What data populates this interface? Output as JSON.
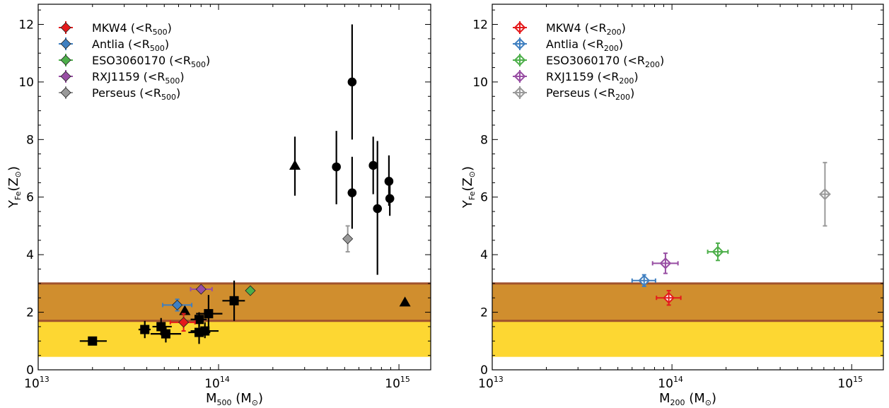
{
  "chart_data": [
    {
      "type": "scatter",
      "xscale": "log",
      "xlim": [
        10000000000000.0,
        1500000000000000.0
      ],
      "ylim": [
        0,
        12.7
      ],
      "xlabel": {
        "main": "M",
        "sub": "500",
        "unit": " (M",
        "sun": "⊙",
        "close": ")"
      },
      "ylabel": {
        "main": "Y",
        "sub": "Fe",
        "unit": "(Z",
        "sun": "⊙",
        "close": ")"
      },
      "xticks": [
        {
          "value": 10000000000000.0,
          "base": "10",
          "exp": "13"
        },
        {
          "value": 100000000000000.0,
          "base": "10",
          "exp": "14"
        },
        {
          "value": 1000000000000000.0,
          "base": "10",
          "exp": "15"
        }
      ],
      "yticks": [
        "0",
        "2",
        "4",
        "6",
        "8",
        "10",
        "12"
      ],
      "grid": false,
      "legend_position": "top-left",
      "bands": [
        {
          "ymin": 0.45,
          "ymax": 1.75,
          "color": "#fdd732"
        },
        {
          "ymin": 1.7,
          "ymax": 3.0,
          "color": "#d08e2e",
          "edge": "#a0522d"
        }
      ],
      "series": [
        {
          "name": "MKW4",
          "suffix": " (<R",
          "radius": "500",
          "close": ")",
          "color": "#e41a1c",
          "marker": "diamond",
          "filled": true,
          "points": [
            {
              "x": 64000000000000.0,
              "y": 1.65,
              "xlo": 54000000000000.0,
              "xhi": 74000000000000.0,
              "ylo": 1.35,
              "yhi": 1.95
            }
          ]
        },
        {
          "name": "Antlia",
          "suffix": " (<R",
          "radius": "500",
          "close": ")",
          "color": "#3f7fc0",
          "marker": "diamond",
          "filled": true,
          "points": [
            {
              "x": 59000000000000.0,
              "y": 2.25,
              "xlo": 49000000000000.0,
              "xhi": 71000000000000.0,
              "ylo": 2.05,
              "yhi": 2.45
            }
          ]
        },
        {
          "name": "ESO3060170",
          "suffix": " (<R",
          "radius": "500",
          "close": ")",
          "color": "#4daf4a",
          "marker": "diamond",
          "filled": true,
          "points": [
            {
              "x": 150000000000000.0,
              "y": 2.75
            }
          ]
        },
        {
          "name": "RXJ1159",
          "suffix": " (<R",
          "radius": "500",
          "close": ")",
          "color": "#984ea3",
          "marker": "diamond",
          "filled": true,
          "points": [
            {
              "x": 80000000000000.0,
              "y": 2.8,
              "xlo": 70000000000000.0,
              "xhi": 92000000000000.0
            }
          ]
        },
        {
          "name": "Perseus",
          "suffix": " (<R",
          "radius": "500",
          "close": ")",
          "color": "#999999",
          "marker": "diamond",
          "filled": true,
          "points": [
            {
              "x": 520000000000000.0,
              "y": 4.55,
              "ylo": 4.1,
              "yhi": 5.0
            }
          ]
        },
        {
          "color": "#000000",
          "marker": "square",
          "filled": true,
          "points": [
            {
              "x": 20000000000000.0,
              "y": 1.0,
              "xlo": 17000000000000.0,
              "xhi": 24000000000000.0,
              "ylo": 0.85,
              "yhi": 1.15
            },
            {
              "x": 39000000000000.0,
              "y": 1.4,
              "xlo": 36000000000000.0,
              "xhi": 42000000000000.0,
              "ylo": 1.1,
              "yhi": 1.7
            },
            {
              "x": 48000000000000.0,
              "y": 1.5,
              "xlo": 43000000000000.0,
              "xhi": 55000000000000.0,
              "ylo": 1.2,
              "yhi": 1.8
            },
            {
              "x": 51000000000000.0,
              "y": 1.25,
              "xlo": 42000000000000.0,
              "xhi": 62000000000000.0,
              "ylo": 0.95,
              "yhi": 1.5
            },
            {
              "x": 78000000000000.0,
              "y": 1.75,
              "xlo": 70000000000000.0,
              "xhi": 86000000000000.0,
              "ylo": 1.5,
              "yhi": 2.0
            },
            {
              "x": 78000000000000.0,
              "y": 1.3,
              "xlo": 68000000000000.0,
              "xhi": 90000000000000.0,
              "ylo": 0.9,
              "yhi": 1.7
            },
            {
              "x": 84000000000000.0,
              "y": 1.35,
              "xlo": 70000000000000.0,
              "xhi": 100000000000000.0,
              "ylo": 1.1,
              "yhi": 1.65
            },
            {
              "x": 88000000000000.0,
              "y": 1.95,
              "xlo": 75000000000000.0,
              "xhi": 105000000000000.0,
              "ylo": 1.3,
              "yhi": 2.6
            },
            {
              "x": 122000000000000.0,
              "y": 2.4,
              "xlo": 105000000000000.0,
              "xhi": 140000000000000.0,
              "ylo": 1.7,
              "yhi": 3.1
            }
          ]
        },
        {
          "color": "#000000",
          "marker": "triangle",
          "filled": true,
          "points": [
            {
              "x": 65000000000000.0,
              "y": 2.05
            },
            {
              "x": 265000000000000.0,
              "y": 7.1,
              "ylo": 6.05,
              "yhi": 8.1
            },
            {
              "x": 1080000000000000.0,
              "y": 2.35
            }
          ]
        },
        {
          "color": "#000000",
          "marker": "circle",
          "filled": true,
          "points": [
            {
              "x": 450000000000000.0,
              "y": 7.05,
              "ylo": 5.75,
              "yhi": 8.3
            },
            {
              "x": 550000000000000.0,
              "y": 10.0,
              "ylo": 8.0,
              "yhi": 12.0
            },
            {
              "x": 550000000000000.0,
              "y": 6.15,
              "ylo": 4.9,
              "yhi": 7.4,
              "xlo": 520000000000000.0,
              "xhi": 580000000000000.0
            },
            {
              "x": 720000000000000.0,
              "y": 7.1,
              "ylo": 6.1,
              "yhi": 8.1
            },
            {
              "x": 760000000000000.0,
              "y": 5.6,
              "ylo": 3.3,
              "yhi": 7.95
            },
            {
              "x": 880000000000000.0,
              "y": 6.55,
              "ylo": 5.7,
              "yhi": 7.45
            },
            {
              "x": 890000000000000.0,
              "y": 5.95,
              "ylo": 5.35,
              "yhi": 6.55
            }
          ]
        }
      ]
    },
    {
      "type": "scatter",
      "xscale": "log",
      "xlim": [
        10000000000000.0,
        1500000000000000.0
      ],
      "ylim": [
        0,
        12.7
      ],
      "xlabel": {
        "main": "M",
        "sub": "200",
        "unit": " (M",
        "sun": "⊙",
        "close": ")"
      },
      "ylabel": {
        "main": "Y",
        "sub": "Fe",
        "unit": "(Z",
        "sun": "⊙",
        "close": ")"
      },
      "xticks": [
        {
          "value": 10000000000000.0,
          "base": "10",
          "exp": "13"
        },
        {
          "value": 100000000000000.0,
          "base": "10",
          "exp": "14"
        },
        {
          "value": 1000000000000000.0,
          "base": "10",
          "exp": "15"
        }
      ],
      "yticks": [
        "0",
        "2",
        "4",
        "6",
        "8",
        "10",
        "12"
      ],
      "grid": false,
      "legend_position": "top-left",
      "bands": [
        {
          "ymin": 0.45,
          "ymax": 1.75,
          "color": "#fdd732"
        },
        {
          "ymin": 1.7,
          "ymax": 3.0,
          "color": "#d08e2e",
          "edge": "#a0522d"
        }
      ],
      "series": [
        {
          "name": "MKW4",
          "suffix": " (<R",
          "radius": "200",
          "close": ")",
          "color": "#e41a1c",
          "marker": "diamond-cross",
          "filled": false,
          "points": [
            {
              "x": 96000000000000.0,
              "y": 2.5,
              "xlo": 82000000000000.0,
              "xhi": 112000000000000.0,
              "ylo": 2.25,
              "yhi": 2.75
            }
          ]
        },
        {
          "name": "Antlia",
          "suffix": " (<R",
          "radius": "200",
          "close": ")",
          "color": "#3f7fc0",
          "marker": "diamond-cross",
          "filled": false,
          "points": [
            {
              "x": 70000000000000.0,
              "y": 3.1,
              "xlo": 60000000000000.0,
              "xhi": 81000000000000.0,
              "ylo": 2.9,
              "yhi": 3.3
            }
          ]
        },
        {
          "name": "ESO3060170",
          "suffix": " (<R",
          "radius": "200",
          "close": ")",
          "color": "#4daf4a",
          "marker": "diamond-cross",
          "filled": false,
          "points": [
            {
              "x": 180000000000000.0,
              "y": 4.1,
              "xlo": 158000000000000.0,
              "xhi": 205000000000000.0,
              "ylo": 3.8,
              "yhi": 4.4
            }
          ]
        },
        {
          "name": "RXJ1159",
          "suffix": " (<R",
          "radius": "200",
          "close": ")",
          "color": "#984ea3",
          "marker": "diamond-cross",
          "filled": false,
          "points": [
            {
              "x": 92000000000000.0,
              "y": 3.7,
              "xlo": 78000000000000.0,
              "xhi": 108000000000000.0,
              "ylo": 3.35,
              "yhi": 4.05
            }
          ]
        },
        {
          "name": "Perseus",
          "suffix": " (<R",
          "radius": "200",
          "close": ")",
          "color": "#999999",
          "marker": "diamond-cross",
          "filled": false,
          "points": [
            {
              "x": 710000000000000.0,
              "y": 6.1,
              "ylo": 5.0,
              "yhi": 7.2
            }
          ]
        }
      ]
    }
  ]
}
